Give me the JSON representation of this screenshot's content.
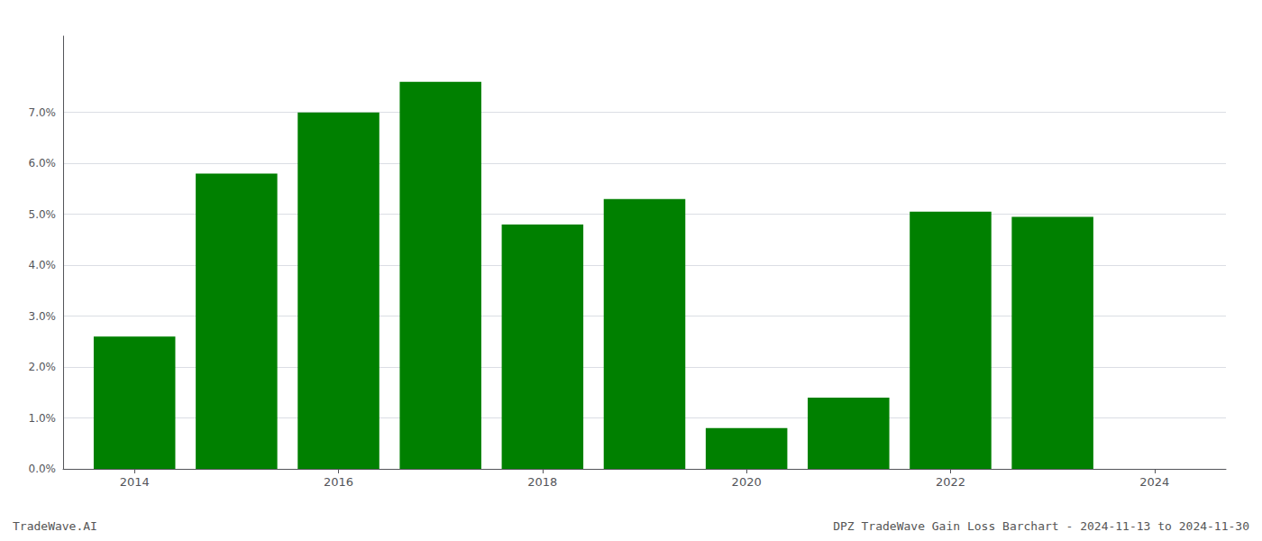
{
  "chart_data": {
    "type": "bar",
    "x": [
      2014,
      2015,
      2016,
      2017,
      2018,
      2019,
      2020,
      2021,
      2022,
      2023,
      2024
    ],
    "values": [
      0.026,
      0.058,
      0.07,
      0.076,
      0.048,
      0.053,
      0.008,
      0.014,
      0.0505,
      0.0495,
      null
    ],
    "color": "#008000",
    "xlim": [
      2013.3,
      2024.7
    ],
    "xticks": [
      2014,
      2016,
      2018,
      2020,
      2022,
      2024
    ],
    "ylim": [
      0.0,
      0.085
    ],
    "yticks": [
      {
        "value": 0.0,
        "label": "0.0%"
      },
      {
        "value": 0.01,
        "label": "1.0%"
      },
      {
        "value": 0.02,
        "label": "2.0%"
      },
      {
        "value": 0.03,
        "label": "3.0%"
      },
      {
        "value": 0.04,
        "label": "4.0%"
      },
      {
        "value": 0.05,
        "label": "5.0%"
      },
      {
        "value": 0.06,
        "label": "6.0%"
      },
      {
        "value": 0.07,
        "label": "7.0%"
      }
    ],
    "grid": true,
    "annotations": [
      "TradeWave.AI",
      "DPZ TradeWave Gain Loss Barchart - 2024-11-13 to 2024-11-30"
    ]
  }
}
